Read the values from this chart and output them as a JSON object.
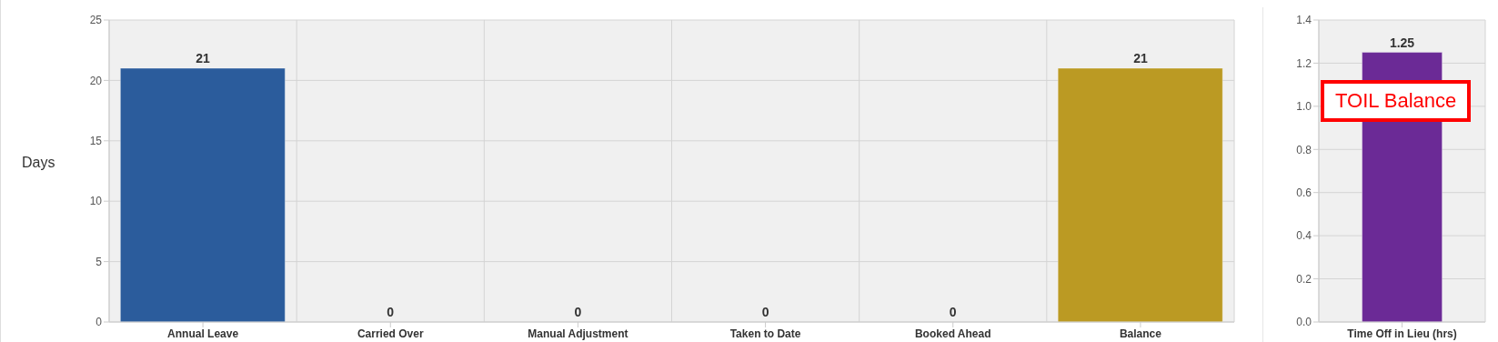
{
  "chart_data": [
    {
      "type": "bar",
      "ylabel": "Days",
      "categories": [
        "Annual Leave",
        "Carried Over",
        "Manual Adjustment",
        "Taken to Date",
        "Booked Ahead",
        "Balance"
      ],
      "values": [
        21,
        0,
        0,
        0,
        0,
        21
      ],
      "colors": [
        "#2b5c9c",
        "#2b5c9c",
        "#2b5c9c",
        "#2b5c9c",
        "#2b5c9c",
        "#bb9a23"
      ],
      "ylim": [
        0,
        25
      ],
      "yticks": [
        0,
        5,
        10,
        15,
        20,
        25
      ],
      "grid": true,
      "data_labels": true
    },
    {
      "type": "bar",
      "categories": [
        "Time Off in Lieu (hrs)"
      ],
      "values": [
        1.25
      ],
      "colors": [
        "#6b2a96"
      ],
      "ylim": [
        0,
        1.4
      ],
      "yticks": [
        {
          "value": 0,
          "label": "0.0"
        },
        {
          "value": 0.2,
          "label": "0.2"
        },
        {
          "value": 0.4,
          "label": "0.4"
        },
        {
          "value": 0.6,
          "label": "0.6"
        },
        {
          "value": 0.8,
          "label": "0.8"
        },
        {
          "value": 1,
          "label": "1.0"
        },
        {
          "value": 1.2,
          "label": "1.2"
        },
        {
          "value": 1.4,
          "label": "1.4"
        }
      ],
      "grid": true,
      "data_labels": true,
      "annotations": [
        "TOIL Balance"
      ]
    }
  ]
}
